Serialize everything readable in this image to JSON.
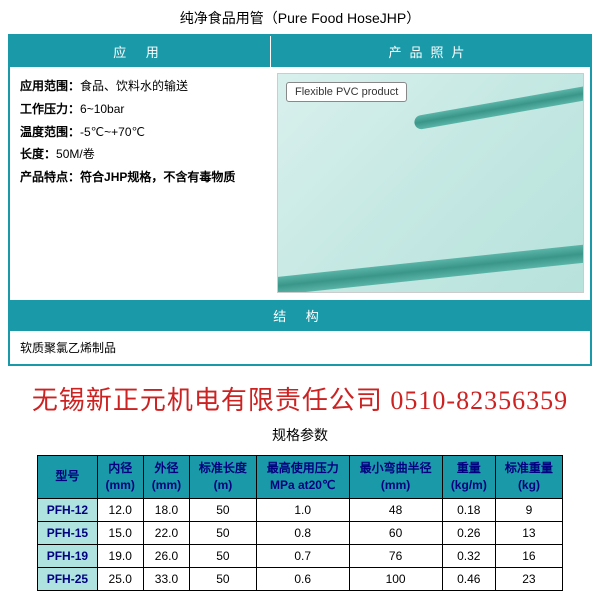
{
  "title": "纯净食品用管（Pure Food HoseJHP）",
  "headers": {
    "app": "应 用",
    "photo": "产品照片",
    "struct": "结 构"
  },
  "app": {
    "range_label": "应用范围：",
    "range_value": "食品、饮料水的输送",
    "pressure_label": "工作压力：",
    "pressure_value": "6~10bar",
    "temp_label": "温度范围：",
    "temp_value": "-5℃~+70℃",
    "length_label": "长度：",
    "length_value": "50M/卷",
    "feature_label": "产品特点：",
    "feature_value": "符合JHP规格，不含有毒物质"
  },
  "photo_label": "Flexible PVC product",
  "structure": "软质聚氯乙烯制品",
  "watermark": "无锡新正元机电有限责任公司 0510-82356359",
  "spec_title": "规格参数",
  "spec": {
    "columns": [
      "型号",
      "内径\n(mm)",
      "外径\n(mm)",
      "标准长度\n(m)",
      "最高使用压力\nMPa at20℃",
      "最小弯曲半径\n(mm)",
      "重量\n(kg/m)",
      "标准重量\n(kg)"
    ],
    "rows": [
      [
        "PFH-12",
        "12.0",
        "18.0",
        "50",
        "1.0",
        "48",
        "0.18",
        "9"
      ],
      [
        "PFH-15",
        "15.0",
        "22.0",
        "50",
        "0.8",
        "60",
        "0.26",
        "13"
      ],
      [
        "PFH-19",
        "19.0",
        "26.0",
        "50",
        "0.7",
        "76",
        "0.32",
        "16"
      ],
      [
        "PFH-25",
        "25.0",
        "33.0",
        "50",
        "0.6",
        "100",
        "0.46",
        "23"
      ]
    ]
  },
  "colors": {
    "brand": "#1a9aa8",
    "row_model_bg": "#aee3e0",
    "header_text": "#000080",
    "watermark": "#cc2222"
  }
}
